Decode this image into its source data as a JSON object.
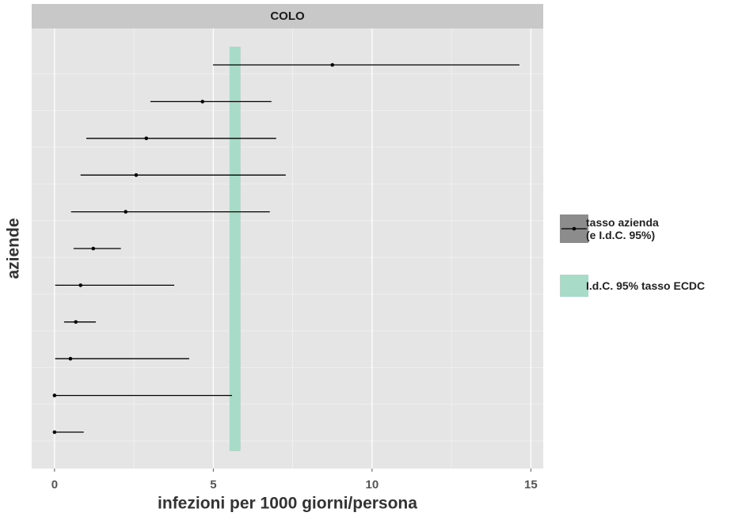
{
  "chart_data": {
    "type": "forest",
    "title": "COLO",
    "x_label": "infezioni per 1000 giorni/persona",
    "y_label": "aziende",
    "xlim": [
      -0.72,
      15.39
    ],
    "xticks": [
      0,
      5,
      10,
      15
    ],
    "categories": [
      null,
      null,
      null,
      null,
      null,
      null,
      null,
      null,
      null,
      null,
      null
    ],
    "series": [
      {
        "name": "tasso azienda\n(e I.d.C. 95%)",
        "color": "#000000",
        "values": [
          8.75,
          4.66,
          2.89,
          2.57,
          2.24,
          1.22,
          0.82,
          0.67,
          0.5,
          0,
          0
        ],
        "lower": [
          4.99,
          3.02,
          1.0,
          0.82,
          0.52,
          0.6,
          0.02,
          0.3,
          0.02,
          0,
          0
        ],
        "upper": [
          14.64,
          6.83,
          6.98,
          7.28,
          6.78,
          2.09,
          3.77,
          1.3,
          4.24,
          5.59,
          0.92
        ]
      }
    ],
    "reference_band": {
      "name": "I.d.C. 95% tasso ECDC",
      "color": "#a8dcc8",
      "range": [
        5.51,
        5.86
      ]
    },
    "legend_position": "right",
    "grid": true
  }
}
